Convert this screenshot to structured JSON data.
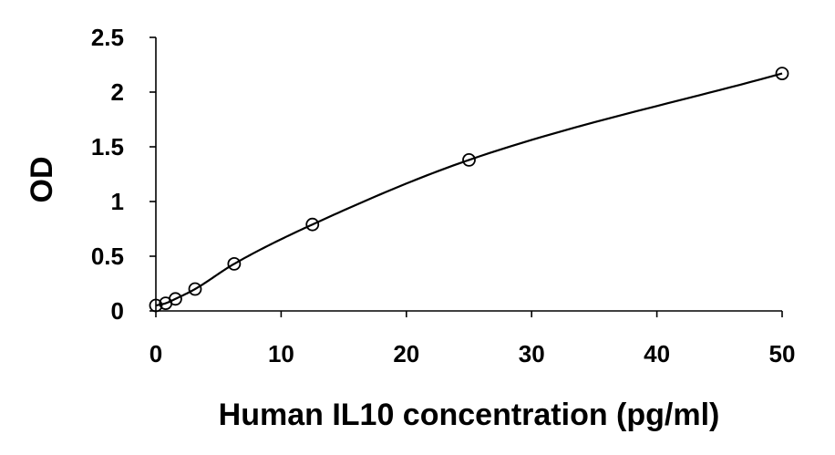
{
  "chart_data": {
    "type": "scatter",
    "title": "",
    "xlabel": "Human IL10 concentration (pg/ml)",
    "ylabel": "OD",
    "xlim": [
      0,
      50
    ],
    "ylim": [
      0,
      2.5
    ],
    "x_ticks": [
      0,
      10,
      20,
      30,
      40,
      50
    ],
    "x_tick_labels": [
      "0",
      "10",
      "20",
      "30",
      "40",
      "50"
    ],
    "y_ticks": [
      0,
      0.5,
      1,
      1.5,
      2,
      2.5
    ],
    "y_tick_labels": [
      "0",
      "0.5",
      "1",
      "1.5",
      "2",
      "2.5"
    ],
    "grid": false,
    "legend": "none",
    "series": [
      {
        "marker": "open-circle",
        "fit_curve": true,
        "x": [
          0,
          0.78,
          1.56,
          3.13,
          6.25,
          12.5,
          25,
          50
        ],
        "y": [
          0.05,
          0.07,
          0.11,
          0.2,
          0.43,
          0.79,
          1.38,
          2.17
        ]
      }
    ],
    "colors": {
      "axis": "#000000",
      "series": "#000000",
      "background": "#ffffff"
    }
  }
}
